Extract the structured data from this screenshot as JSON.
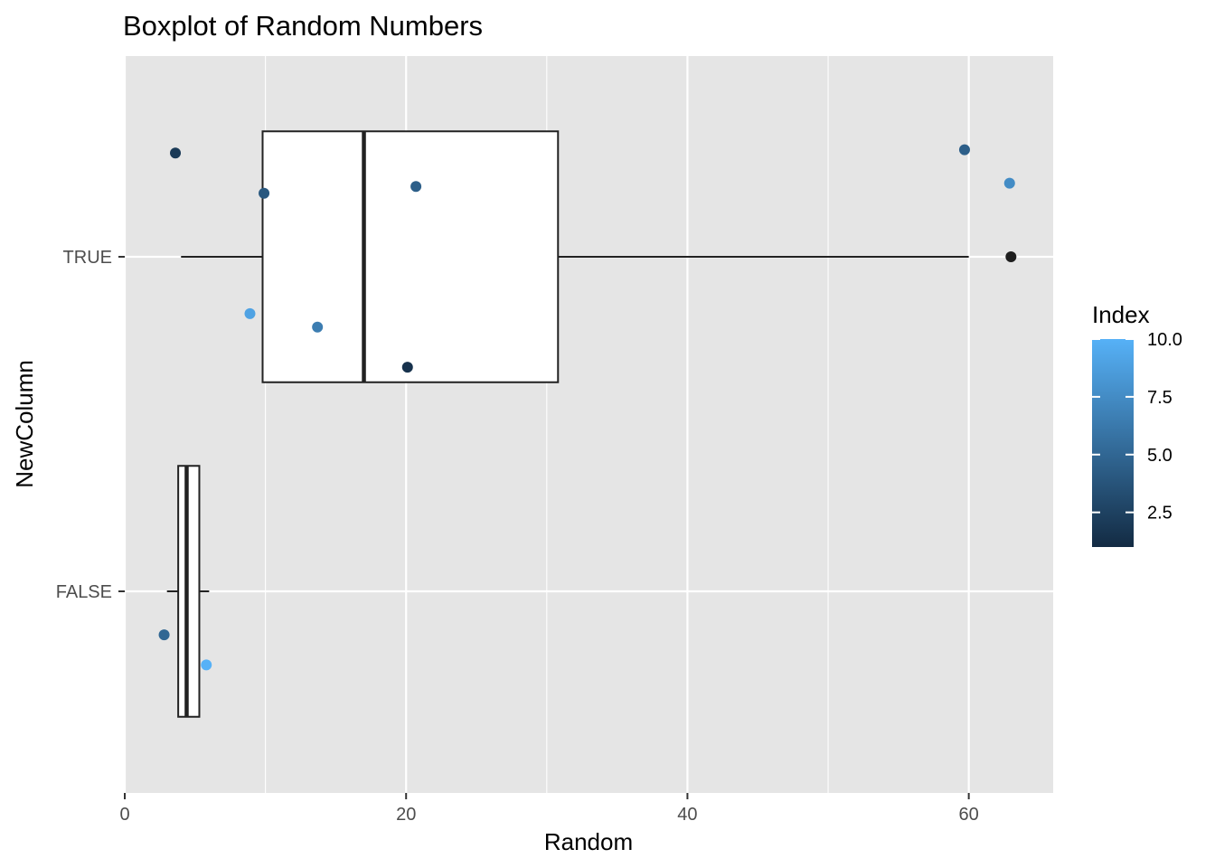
{
  "chart_data": {
    "type": "boxplot",
    "title": "Boxplot of Random Numbers",
    "xlabel": "Random",
    "ylabel": "NewColumn",
    "xlim": [
      0,
      66
    ],
    "x_ticks": [
      0,
      20,
      40,
      60
    ],
    "categories": [
      "FALSE",
      "TRUE"
    ],
    "grid": true,
    "legend_placement": "right",
    "colors": {
      "panel_bg": "#e5e5e5",
      "grid": "#ffffff",
      "box_fill": "#ffffff",
      "box_stroke": "#222222",
      "tick_text": "#4d4d4d",
      "outlier": "#1e1e1e",
      "gradient_low": "#132b43",
      "gradient_high": "#56b1f7"
    },
    "boxes": [
      {
        "category": "TRUE",
        "whisker_low": 4,
        "q1": 9.8,
        "median": 17,
        "q3": 30.8,
        "whisker_high": 60,
        "outliers": [
          63
        ]
      },
      {
        "category": "FALSE",
        "whisker_low": 3,
        "q1": 3.8,
        "median": 4.4,
        "q3": 5.3,
        "whisker_high": 6,
        "outliers": []
      }
    ],
    "points": [
      {
        "category": "TRUE",
        "x": 3.6,
        "jitter": 0.31,
        "index": 2
      },
      {
        "category": "TRUE",
        "x": 9.9,
        "jitter": 0.19,
        "index": 4
      },
      {
        "category": "TRUE",
        "x": 20.7,
        "jitter": 0.21,
        "index": 4.5
      },
      {
        "category": "TRUE",
        "x": 8.9,
        "jitter": -0.17,
        "index": 9
      },
      {
        "category": "TRUE",
        "x": 13.7,
        "jitter": -0.21,
        "index": 6.5
      },
      {
        "category": "TRUE",
        "x": 20.1,
        "jitter": -0.33,
        "index": 1.5
      },
      {
        "category": "TRUE",
        "x": 59.7,
        "jitter": 0.32,
        "index": 4.5
      },
      {
        "category": "TRUE",
        "x": 62.9,
        "jitter": 0.22,
        "index": 7.5
      },
      {
        "category": "FALSE",
        "x": 2.8,
        "jitter": -0.13,
        "index": 5
      },
      {
        "category": "FALSE",
        "x": 5.8,
        "jitter": -0.22,
        "index": 10
      }
    ],
    "legend": {
      "title": "Index",
      "min": 1,
      "max": 10,
      "ticks": [
        2.5,
        5.0,
        7.5,
        10.0
      ],
      "tick_labels": [
        "2.5",
        "5.0",
        "7.5",
        "10.0"
      ]
    }
  }
}
